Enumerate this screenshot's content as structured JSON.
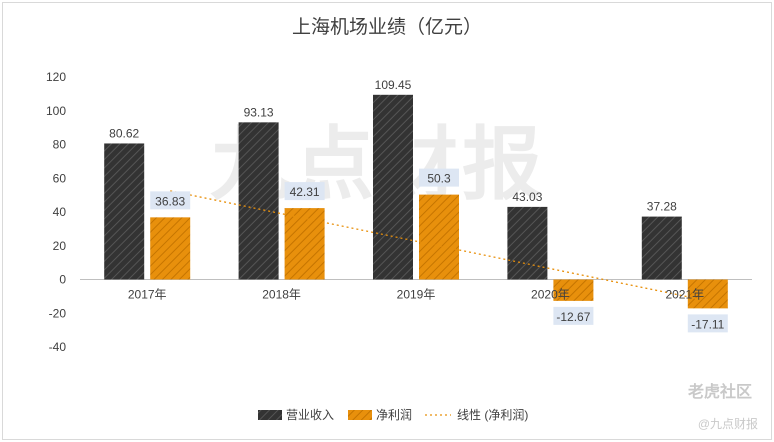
{
  "title": "上海机场业绩（亿元）",
  "chart_data": {
    "type": "bar",
    "title": "上海机场业绩（亿元）",
    "categories": [
      "2017年",
      "2018年",
      "2019年",
      "2020年",
      "2021年"
    ],
    "series": [
      {
        "name": "营业收入",
        "values": [
          80.62,
          93.13,
          109.45,
          43.03,
          37.28
        ],
        "color": "#3a3a3a"
      },
      {
        "name": "净利润",
        "values": [
          36.83,
          42.31,
          50.3,
          -12.67,
          -17.11
        ],
        "color": "#e8900c"
      }
    ],
    "trendline": {
      "name": "线性 (净利润)",
      "of_series": "净利润",
      "type": "linear",
      "color": "#e8900c"
    },
    "ylim": [
      -40,
      120
    ],
    "yticks": [
      -40,
      -20,
      0,
      20,
      40,
      60,
      80,
      100,
      120
    ],
    "grid": false,
    "legend": "bottom"
  },
  "watermarks": {
    "center": "九点财报",
    "corner": "老虎社区",
    "corner2": "@九点财报"
  }
}
